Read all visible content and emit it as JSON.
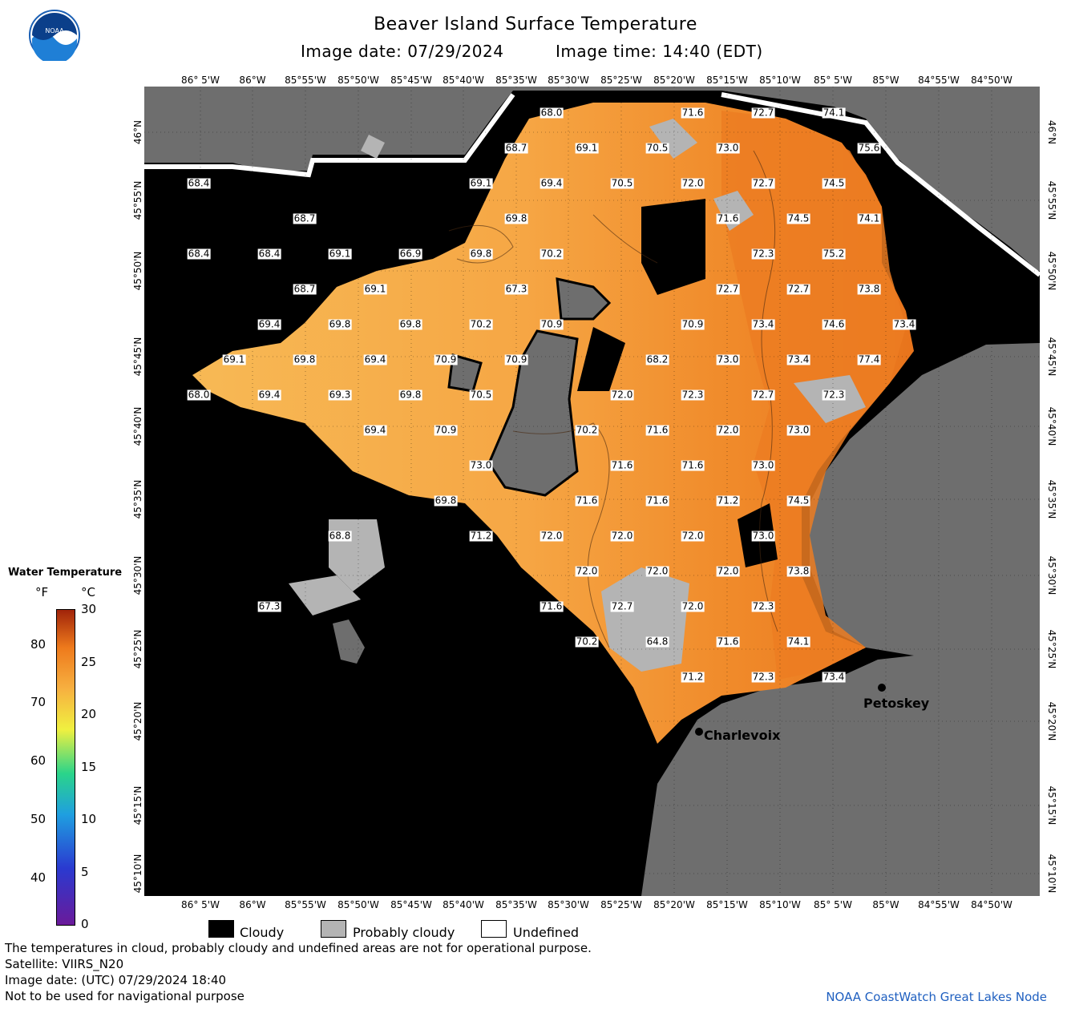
{
  "header": {
    "title": "Beaver Island Surface Temperature",
    "image_date": "Image date: 07/29/2024",
    "image_time": "Image time: 14:40 (EDT)"
  },
  "logo": {
    "text": "NOAA"
  },
  "axes": {
    "lon_labels": [
      "86° 5'W",
      "86°W",
      "85°55'W",
      "85°50'W",
      "85°45'W",
      "85°40'W",
      "85°35'W",
      "85°30'W",
      "85°25'W",
      "85°20'W",
      "85°15'W",
      "85°10'W",
      "85° 5'W",
      "85°W",
      "84°55'W",
      "84°50'W"
    ],
    "lat_labels": [
      "46°N",
      "45°55'N",
      "45°50'N",
      "45°45'N",
      "45°40'N",
      "45°35'N",
      "45°30'N",
      "45°25'N",
      "45°20'N",
      "45°15'N",
      "45°10'N"
    ]
  },
  "temperature_labels": [
    {
      "v": "68.0"
    },
    {
      "v": "71.6"
    },
    {
      "v": "72.7"
    },
    {
      "v": "74.1"
    },
    {
      "v": "68.7"
    },
    {
      "v": "69.1"
    },
    {
      "v": "70.5"
    },
    {
      "v": "73.0"
    },
    {
      "v": "75.6"
    },
    {
      "v": "68.4"
    },
    {
      "v": "69.1"
    },
    {
      "v": "69.4"
    },
    {
      "v": "70.5"
    },
    {
      "v": "72.0"
    },
    {
      "v": "72.7"
    },
    {
      "v": "74.5"
    },
    {
      "v": "68.7"
    },
    {
      "v": "69.8"
    },
    {
      "v": "71.6"
    },
    {
      "v": "74.5"
    },
    {
      "v": "74.1"
    },
    {
      "v": "68.4"
    },
    {
      "v": "68.4"
    },
    {
      "v": "69.1"
    },
    {
      "v": "66.9"
    },
    {
      "v": "69.8"
    },
    {
      "v": "70.2"
    },
    {
      "v": "72.3"
    },
    {
      "v": "75.2"
    },
    {
      "v": "68.7"
    },
    {
      "v": "69.1"
    },
    {
      "v": "67.3"
    },
    {
      "v": "72.7"
    },
    {
      "v": "72.7"
    },
    {
      "v": "73.8"
    },
    {
      "v": "69.4"
    },
    {
      "v": "69.8"
    },
    {
      "v": "69.8"
    },
    {
      "v": "70.2"
    },
    {
      "v": "70.9"
    },
    {
      "v": "70.9"
    },
    {
      "v": "73.4"
    },
    {
      "v": "74.6"
    },
    {
      "v": "73.4"
    },
    {
      "v": "69.1"
    },
    {
      "v": "69.8"
    },
    {
      "v": "69.4"
    },
    {
      "v": "70.9"
    },
    {
      "v": "70.9"
    },
    {
      "v": "68.2"
    },
    {
      "v": "73.0"
    },
    {
      "v": "73.4"
    },
    {
      "v": "77.4"
    },
    {
      "v": "68.0"
    },
    {
      "v": "69.4"
    },
    {
      "v": "69.3"
    },
    {
      "v": "69.8"
    },
    {
      "v": "70.5"
    },
    {
      "v": "72.0"
    },
    {
      "v": "72.3"
    },
    {
      "v": "72.7"
    },
    {
      "v": "72.3"
    },
    {
      "v": "69.4"
    },
    {
      "v": "70.9"
    },
    {
      "v": "70.2"
    },
    {
      "v": "71.6"
    },
    {
      "v": "72.0"
    },
    {
      "v": "73.0"
    },
    {
      "v": "73.0"
    },
    {
      "v": "71.6"
    },
    {
      "v": "71.6"
    },
    {
      "v": "73.0"
    },
    {
      "v": "69.8"
    },
    {
      "v": "71.6"
    },
    {
      "v": "71.6"
    },
    {
      "v": "71.2"
    },
    {
      "v": "74.5"
    },
    {
      "v": "68.8"
    },
    {
      "v": "71.2"
    },
    {
      "v": "72.0"
    },
    {
      "v": "72.0"
    },
    {
      "v": "72.0"
    },
    {
      "v": "73.0"
    },
    {
      "v": "72.0"
    },
    {
      "v": "72.0"
    },
    {
      "v": "72.0"
    },
    {
      "v": "73.8"
    },
    {
      "v": "67.3"
    },
    {
      "v": "71.6"
    },
    {
      "v": "72.7"
    },
    {
      "v": "72.0"
    },
    {
      "v": "72.3"
    },
    {
      "v": "70.2"
    },
    {
      "v": "64.8"
    },
    {
      "v": "71.6"
    },
    {
      "v": "74.1"
    },
    {
      "v": "71.2"
    },
    {
      "v": "72.3"
    },
    {
      "v": "73.4"
    }
  ],
  "cities": {
    "petoskey": "Petoskey",
    "charlevoix": "Charlevoix"
  },
  "colorbar": {
    "title": "Water Temperature",
    "unit_f": "°F",
    "unit_c": "°C",
    "f_ticks": [
      "80",
      "70",
      "60",
      "50",
      "40"
    ],
    "c_ticks": [
      "30",
      "25",
      "20",
      "15",
      "10",
      "5",
      "0"
    ]
  },
  "legend": {
    "cloudy": "Cloudy",
    "probably_cloudy": "Probably cloudy",
    "undefined": "Undefined",
    "colors": {
      "cloudy": "#000000",
      "probably_cloudy": "#b4b4b4",
      "undefined": "#ffffff",
      "land": "#6e6e6e"
    }
  },
  "footer": {
    "line1": "The temperatures in cloud, probably cloudy and undefined areas are not for operational purpose.",
    "line2": "Satellite: VIIRS_N20",
    "line3": "Image date: (UTC) 07/29/2024  18:40",
    "line4": "Not to be used for navigational purpose"
  },
  "credit": "NOAA CoastWatch Great Lakes Node"
}
